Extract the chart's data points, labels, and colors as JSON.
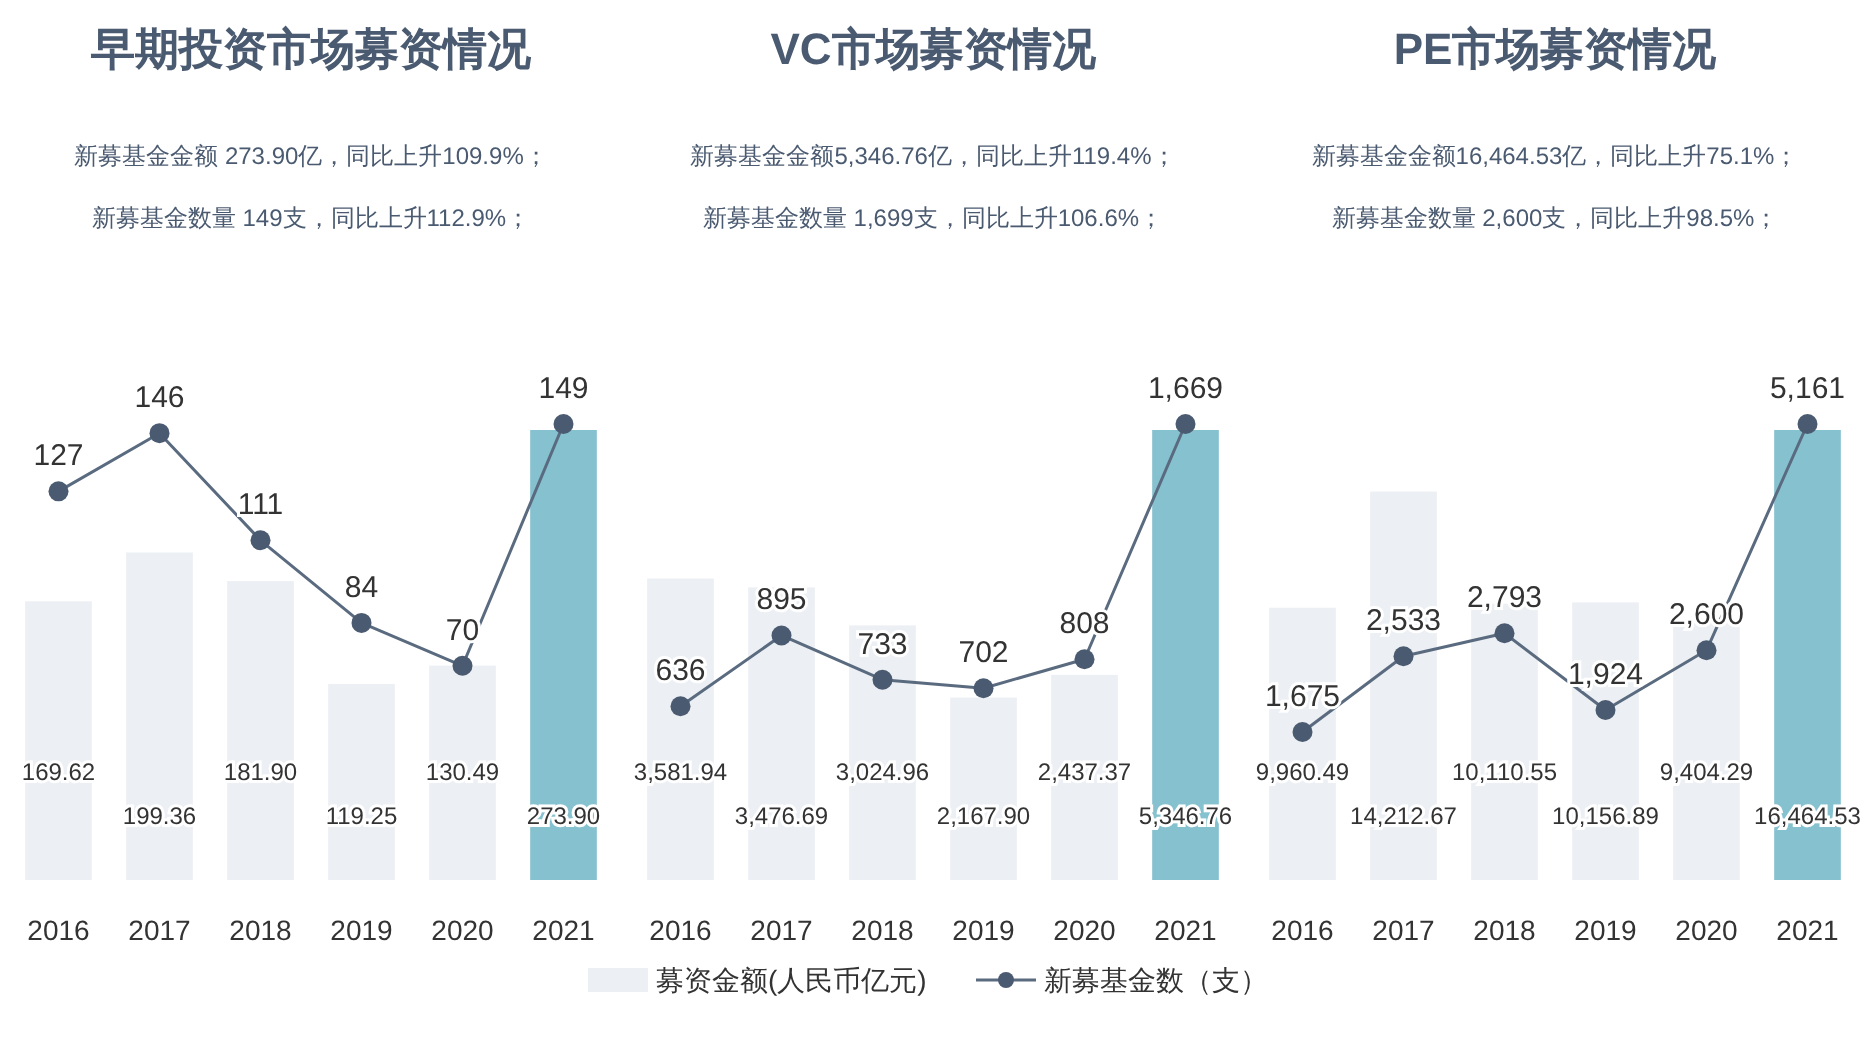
{
  "chart_data": [
    {
      "type": "bar",
      "title": "早期投资市场募资情况",
      "annotations": [
        "新募基金金额 273.90亿，同比上升109.9%；",
        "新募基金数量 149支，同比上升112.9%；"
      ],
      "categories": [
        "2016",
        "2017",
        "2018",
        "2019",
        "2020",
        "2021"
      ],
      "legend": false,
      "series": [
        {
          "colors": [
            "#eceff3",
            "#eceff3",
            "#eceff3",
            "#eceff3",
            "#eceff3",
            "#86c1cf"
          ],
          "values": [
            169.62,
            199.36,
            181.9,
            119.25,
            130.49,
            273.9
          ],
          "value_labels": [
            "169.62",
            "199.36",
            "181.90",
            "119.25",
            "130.49",
            "273.90"
          ]
        },
        {
          "type": "line",
          "axis": "y2",
          "color": "#5a6b80",
          "marker": "circle",
          "values": [
            127,
            146,
            111,
            84,
            70,
            149
          ],
          "value_labels": [
            "127",
            "146",
            "111",
            "84",
            "70",
            "149"
          ]
        }
      ]
    },
    {
      "type": "bar",
      "title": "VC市场募资情况",
      "annotations": [
        "新募基金金额5,346.76亿，同比上升119.4%；",
        "新募基金数量 1,699支，同比上升106.6%；"
      ],
      "categories": [
        "2016",
        "2017",
        "2018",
        "2019",
        "2020",
        "2021"
      ],
      "legend": "bottom",
      "series": [
        {
          "name": "募资金额(人民币亿元)",
          "color": "#eceff3",
          "colors": [
            "#eceff3",
            "#eceff3",
            "#eceff3",
            "#eceff3",
            "#eceff3",
            "#86c1cf"
          ],
          "values": [
            3581.94,
            3476.69,
            3024.96,
            2167.9,
            2437.37,
            5346.76
          ],
          "value_labels": [
            "3,581.94",
            "3,476.69",
            "3,024.96",
            "2,167.90",
            "2,437.37",
            "5,346.76"
          ]
        },
        {
          "type": "line",
          "axis": "y2",
          "name": "新募基金数（支）",
          "color": "#5a6b80",
          "marker": "circle",
          "values": [
            636,
            895,
            733,
            702,
            808,
            1669
          ],
          "value_labels": [
            "636",
            "895",
            "733",
            "702",
            "808",
            "1,669"
          ]
        }
      ]
    },
    {
      "type": "bar",
      "title": "PE市场募资情况",
      "annotations": [
        "新募基金金额16,464.53亿，同比上升75.1%；",
        "新募基金数量 2,600支，同比上升98.5%；"
      ],
      "categories": [
        "2016",
        "2017",
        "2018",
        "2019",
        "2020",
        "2021"
      ],
      "legend": false,
      "series": [
        {
          "colors": [
            "#eceff3",
            "#eceff3",
            "#eceff3",
            "#eceff3",
            "#eceff3",
            "#86c1cf"
          ],
          "values": [
            9960.49,
            14212.67,
            10110.55,
            10156.89,
            9404.29,
            16464.53
          ],
          "value_labels": [
            "9,960.49",
            "14,212.67",
            "10,110.55",
            "10,156.89",
            "9,404.29",
            "16,464.53"
          ]
        },
        {
          "type": "line",
          "axis": "y2",
          "color": "#5a6b80",
          "marker": "circle",
          "values": [
            1675,
            2533,
            2793,
            1924,
            2600,
            5161
          ],
          "value_labels": [
            "1,675",
            "2,533",
            "2,793",
            "1,924",
            "2,600",
            "5,161"
          ]
        }
      ]
    }
  ]
}
